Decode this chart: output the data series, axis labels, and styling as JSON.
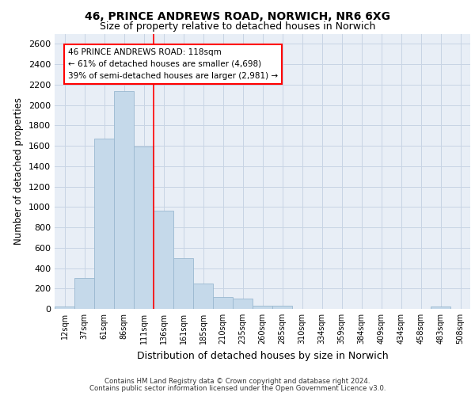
{
  "title_line1": "46, PRINCE ANDREWS ROAD, NORWICH, NR6 6XG",
  "title_line2": "Size of property relative to detached houses in Norwich",
  "xlabel": "Distribution of detached houses by size in Norwich",
  "ylabel": "Number of detached properties",
  "bin_labels": [
    "12sqm",
    "37sqm",
    "61sqm",
    "86sqm",
    "111sqm",
    "136sqm",
    "161sqm",
    "185sqm",
    "210sqm",
    "235sqm",
    "260sqm",
    "285sqm",
    "310sqm",
    "334sqm",
    "359sqm",
    "384sqm",
    "409sqm",
    "434sqm",
    "458sqm",
    "483sqm",
    "508sqm"
  ],
  "bar_values": [
    25,
    300,
    1670,
    2140,
    1590,
    960,
    500,
    250,
    120,
    100,
    30,
    30,
    0,
    0,
    0,
    0,
    0,
    0,
    0,
    25,
    0
  ],
  "bar_color": "#c5d9ea",
  "bar_edge_color": "#9ab8d0",
  "annotation_text_line1": "46 PRINCE ANDREWS ROAD: 118sqm",
  "annotation_text_line2": "← 61% of detached houses are smaller (4,698)",
  "annotation_text_line3": "39% of semi-detached houses are larger (2,981) →",
  "ylim": [
    0,
    2700
  ],
  "yticks": [
    0,
    200,
    400,
    600,
    800,
    1000,
    1200,
    1400,
    1600,
    1800,
    2000,
    2200,
    2400,
    2600
  ],
  "grid_color": "#c8d4e4",
  "background_color": "#e8eef6",
  "footer_line1": "Contains HM Land Registry data © Crown copyright and database right 2024.",
  "footer_line2": "Contains public sector information licensed under the Open Government Licence v3.0."
}
